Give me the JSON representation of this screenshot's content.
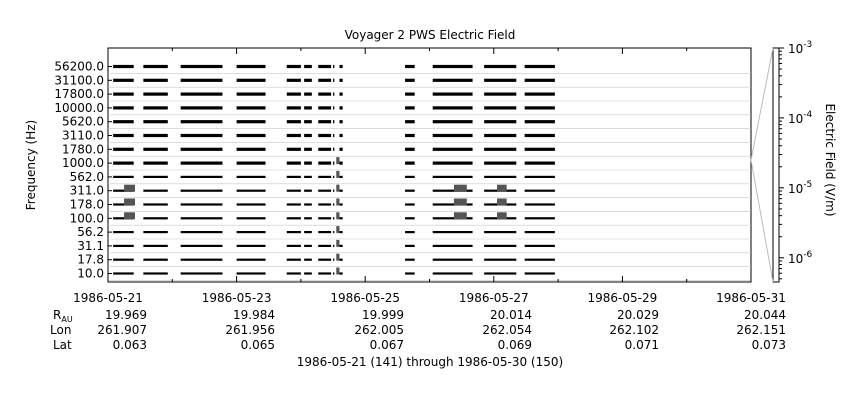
{
  "chart_data": {
    "type": "heatmap",
    "title": "Voyager 2 PWS Electric Field",
    "ylabel": "Frequency (Hz)",
    "colorbar_label": "Electric Field (V/m)",
    "colorbar_scale": "log",
    "colorbar_range": [
      4.5e-07,
      0.001
    ],
    "colorbar_ticks": [
      {
        "base": "10",
        "exp": "-3",
        "value": 0.001
      },
      {
        "base": "10",
        "exp": "-4",
        "value": 0.0001
      },
      {
        "base": "10",
        "exp": "-5",
        "value": 1e-05
      },
      {
        "base": "10",
        "exp": "-6",
        "value": 1e-06
      }
    ],
    "frequency_channels": [
      "56200.0",
      "31100.0",
      "17800.0",
      "10000.0",
      "5620.0",
      "3110.0",
      "1780.0",
      "1000.0",
      "562.0",
      "311.0",
      "178.0",
      "100.0",
      "56.2",
      "31.1",
      "17.8",
      "10.0"
    ],
    "x_start": "1986-05-21",
    "x_end": "1986-05-31",
    "x_tick_labels": [
      "1986-05-21",
      "1986-05-23",
      "1986-05-25",
      "1986-05-27",
      "1986-05-29",
      "1986-05-31"
    ],
    "ephemeris": {
      "row_labels": {
        "rau": "R",
        "rau_sub": "AU",
        "lon": "Lon",
        "lat": "Lat"
      },
      "rau": [
        "19.969",
        "19.984",
        "19.999",
        "20.014",
        "20.029",
        "20.044"
      ],
      "lon": [
        "261.907",
        "261.956",
        "262.005",
        "262.054",
        "262.102",
        "262.151"
      ],
      "lat": [
        "0.063",
        "0.065",
        "0.067",
        "0.069",
        "0.071",
        "0.073"
      ]
    },
    "footer": "1986-05-21 (141) through 1986-05-30 (150)",
    "data_segments_days": [
      [
        0.08,
        0.4
      ],
      [
        0.55,
        0.93
      ],
      [
        1.13,
        1.78
      ],
      [
        2.0,
        2.45
      ],
      [
        2.78,
        3.0
      ],
      [
        3.05,
        3.17
      ],
      [
        3.27,
        3.47
      ],
      [
        3.5,
        3.52
      ],
      [
        3.6,
        3.65
      ],
      [
        4.62,
        4.77
      ],
      [
        5.05,
        5.67
      ],
      [
        5.85,
        6.35
      ],
      [
        6.48,
        6.95
      ]
    ],
    "emission_bursts": [
      {
        "day_start": 0.25,
        "day_end": 0.42,
        "channels": [
          "311.0",
          "178.0",
          "100.0"
        ]
      },
      {
        "day_start": 3.55,
        "day_end": 3.6,
        "channels": [
          "1000.0",
          "562.0",
          "311.0",
          "178.0",
          "100.0",
          "56.2",
          "31.1",
          "17.8",
          "10.0"
        ]
      },
      {
        "day_start": 5.38,
        "day_end": 5.58,
        "channels": [
          "311.0",
          "178.0",
          "100.0"
        ]
      },
      {
        "day_start": 6.05,
        "day_end": 6.2,
        "channels": [
          "311.0",
          "178.0",
          "100.0"
        ]
      }
    ]
  }
}
